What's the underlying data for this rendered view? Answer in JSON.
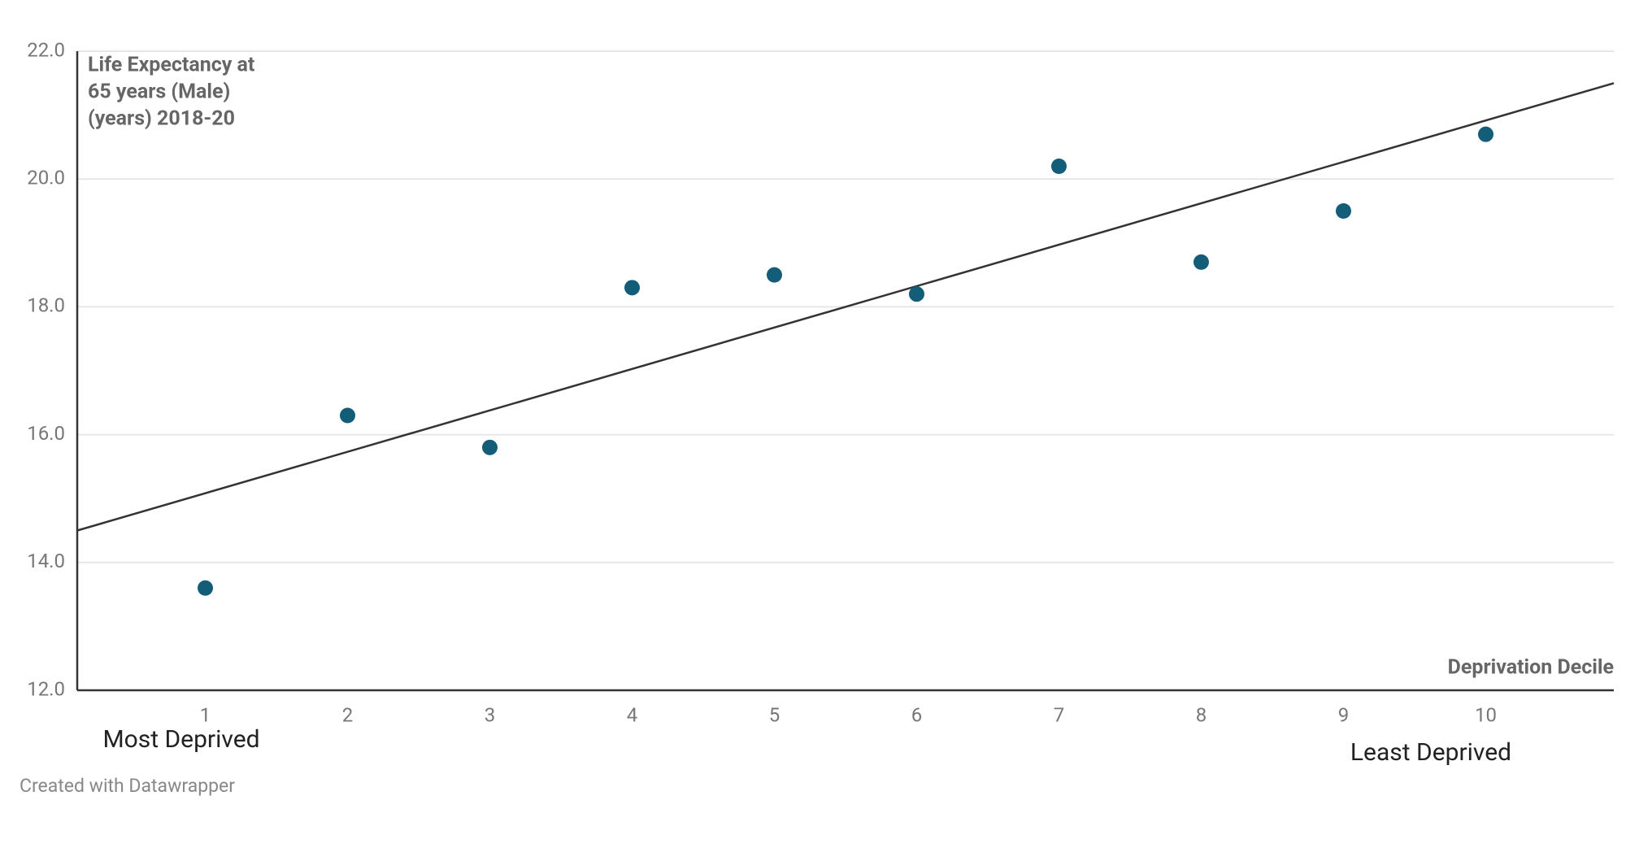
{
  "chart_data": {
    "type": "scatter",
    "ylabel": [
      "Life Expectancy at",
      "65 years (Male)",
      "(years) 2018-20"
    ],
    "xlabel": "Deprivation Decile",
    "annotations": [
      "Most Deprived",
      "Least Deprived"
    ],
    "footer": "Created with Datawrapper",
    "x": [
      1,
      2,
      3,
      4,
      5,
      6,
      7,
      8,
      9,
      10
    ],
    "series": [
      {
        "color": "#145d78",
        "values": [
          13.6,
          16.3,
          15.8,
          18.3,
          18.5,
          18.2,
          20.2,
          18.7,
          19.5,
          20.7
        ]
      }
    ],
    "trendline": {
      "color": "#333333",
      "x": [
        0.1,
        10.9
      ],
      "y": [
        14.5,
        21.5
      ]
    },
    "xlim": [
      0.1,
      10.9
    ],
    "ylim": [
      12,
      22
    ],
    "xticks": [
      1,
      2,
      3,
      4,
      5,
      6,
      7,
      8,
      9,
      10
    ],
    "yticks": [
      {
        "value": 12,
        "label": "12.0"
      },
      {
        "value": 14,
        "label": "14.0"
      },
      {
        "value": 16,
        "label": "16.0"
      },
      {
        "value": 18,
        "label": "18.0"
      },
      {
        "value": 20,
        "label": "20.0"
      },
      {
        "value": 22,
        "label": "22.0"
      }
    ],
    "grid": true
  }
}
